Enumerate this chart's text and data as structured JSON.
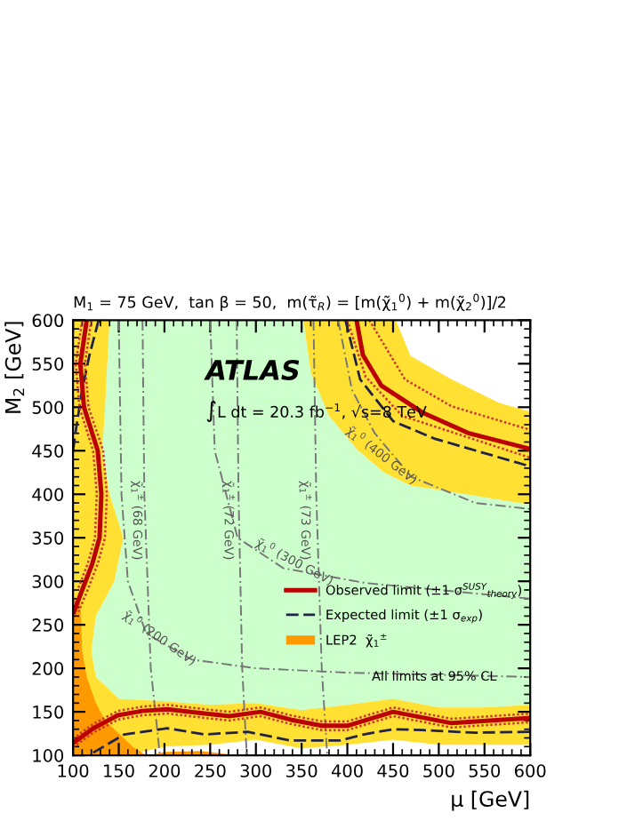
{
  "chart_data": {
    "type": "line",
    "title": "M$_{1}$ = 75 GeV,  tan β = 50,  m(τ̃$_{R}$) = [m(χ̃$_{1}$$^{0}$) + m(χ̃$_{2}$$^{0}$)]/2",
    "xlabel": "μ [GeV]",
    "ylabel": "M$_{2}$ [GeV]",
    "xlim": [
      100,
      600
    ],
    "ylim": [
      100,
      600
    ],
    "xticks": [
      100,
      150,
      200,
      250,
      300,
      350,
      400,
      450,
      500,
      550,
      600
    ],
    "yticks": [
      100,
      150,
      200,
      250,
      300,
      350,
      400,
      450,
      500,
      550,
      600
    ],
    "grid": false,
    "legend": "right",
    "series": [
      {
        "type": "area",
        "color": "#ccffcc",
        "x": [
          140,
          135,
          132,
          140,
          155,
          145,
          125,
          120,
          125,
          150,
          200,
          250,
          300,
          350,
          400,
          450,
          500,
          550,
          600,
          600,
          530,
          469,
          440,
          411,
          380,
          360,
          352
        ],
        "values": [
          600,
          500,
          450,
          400,
          350,
          300,
          260,
          220,
          190,
          165,
          162,
          158,
          160,
          152,
          158,
          165,
          155,
          155,
          158,
          388,
          400,
          410,
          425,
          451,
          490,
          540,
          600
        ]
      },
      {
        "type": "area",
        "color": "#ffe033",
        "x": [
          100,
          140,
          135,
          132,
          140,
          155,
          145,
          125,
          120,
          125,
          150,
          200,
          250,
          300,
          350,
          400,
          450,
          500,
          550,
          600,
          600,
          500,
          450,
          400,
          350,
          300,
          250,
          200,
          160,
          100
        ],
        "values": [
          600,
          600,
          500,
          450,
          400,
          350,
          300,
          260,
          220,
          190,
          165,
          162,
          158,
          160,
          152,
          158,
          165,
          155,
          155,
          158,
          112,
          112,
          118,
          112,
          108,
          118,
          112,
          110,
          100,
          100
        ]
      },
      {
        "type": "area",
        "color": "#ffe033",
        "x": [
          352,
          453,
          469,
          514,
          566,
          600,
          600,
          530,
          469,
          440,
          411,
          380,
          360
        ],
        "values": [
          600,
          600,
          559,
          532,
          505,
          495,
          388,
          400,
          410,
          425,
          451,
          490,
          540
        ]
      },
      {
        "type": "area",
        "name": "LEP2  χ̃$_{1}$$^{±}$",
        "color": "#ff9900",
        "x": [
          100,
          108,
          110,
          115,
          125,
          135,
          150,
          165,
          180,
          100
        ],
        "values": [
          280,
          275,
          220,
          190,
          160,
          140,
          125,
          110,
          100,
          100
        ]
      },
      {
        "type": "area",
        "color": "#ff9900",
        "x": [
          185,
          200,
          240,
          280
        ],
        "values": [
          100,
          104,
          105,
          100
        ]
      },
      {
        "color": "#777777",
        "line_style": "dashdot",
        "x": [
          176,
          178,
          185,
          195
        ],
        "values": [
          600,
          400,
          200,
          100
        ]
      },
      {
        "color": "#777777",
        "line_style": "dashdot",
        "x": [
          279,
          281,
          285,
          290
        ],
        "values": [
          600,
          400,
          200,
          100
        ]
      },
      {
        "color": "#777777",
        "line_style": "dashdot",
        "x": [
          363,
          366,
          372,
          378
        ],
        "values": [
          600,
          400,
          200,
          100
        ]
      },
      {
        "color": "#777777",
        "line_style": "dashdot",
        "x": [
          150,
          153,
          160,
          180,
          230,
          300,
          400,
          600
        ],
        "values": [
          600,
          400,
          300,
          240,
          210,
          200,
          195,
          190
        ]
      },
      {
        "color": "#777777",
        "line_style": "dashdot",
        "x": [
          250,
          255,
          280,
          330,
          420,
          600
        ],
        "values": [
          600,
          450,
          350,
          315,
          298,
          280
        ]
      },
      {
        "color": "#777777",
        "line_style": "dashdot",
        "x": [
          390,
          405,
          430,
          470,
          540,
          600
        ],
        "values": [
          600,
          520,
          470,
          420,
          390,
          383
        ]
      },
      {
        "name": "Expected limit (±1 σ$_{exp}$)",
        "color": "#222244",
        "line_style": "dashed",
        "x": [
          128,
          118,
          110,
          104,
          100
        ],
        "values": [
          600,
          560,
          520,
          480,
          450
        ]
      },
      {
        "color": "#222244",
        "line_style": "dashed",
        "x": [
          122,
          156,
          203,
          244,
          291,
          338,
          392,
          418,
          450,
          482,
          540,
          600
        ],
        "values": [
          103,
          124,
          131,
          124,
          127,
          117,
          117,
          124,
          130,
          129,
          126,
          127
        ]
      },
      {
        "color": "#222244",
        "line_style": "dashed",
        "x": [
          398,
          414,
          450,
          495,
          600
        ],
        "values": [
          600,
          532,
          484,
          464,
          432
        ]
      },
      {
        "color": "#cc3333",
        "line_style": "dotted",
        "x": [
          120,
          113,
          117,
          133,
          137,
          135,
          127,
          116,
          106
        ],
        "values": [
          600,
          550,
          500,
          450,
          400,
          350,
          320,
          290,
          265
        ]
      },
      {
        "color": "#cc3333",
        "line_style": "dotted",
        "x": [
          100,
          122,
          149,
          176,
          203,
          244,
          271,
          305,
          338,
          372,
          400,
          450,
          514,
          600
        ],
        "values": [
          119,
          136,
          151,
          156,
          158,
          153,
          150,
          155,
          146,
          139,
          139,
          155,
          142,
          148
        ]
      },
      {
        "color": "#cc3333",
        "line_style": "dotted",
        "x": [
          424,
          463,
          514,
          600
        ],
        "values": [
          600,
          532,
          501,
          474
        ]
      },
      {
        "color": "#cc3333",
        "line_style": "dotted",
        "x": [
          110,
          103,
          107,
          122,
          126,
          124,
          116,
          105
        ],
        "values": [
          600,
          550,
          500,
          450,
          400,
          350,
          320,
          290
        ]
      },
      {
        "color": "#cc3333",
        "line_style": "dotted",
        "x": [
          100,
          122,
          149,
          176,
          203,
          244,
          271,
          305,
          338,
          372,
          400,
          450,
          514,
          600
        ],
        "values": [
          109,
          126,
          141,
          146,
          148,
          143,
          140,
          145,
          136,
          129,
          129,
          145,
          132,
          138
        ]
      },
      {
        "color": "#cc3333",
        "line_style": "dotted",
        "x": [
          400,
          420,
          460,
          600
        ],
        "values": [
          600,
          535,
          490,
          442
        ]
      },
      {
        "name": "Observed limit (±1 σ$^{SUSY}$$_{theory}$)",
        "color": "#bb0000",
        "line_style": "solid",
        "x": [
          115,
          108,
          112,
          127,
          131,
          129,
          121,
          110,
          101
        ],
        "values": [
          600,
          550,
          500,
          450,
          400,
          350,
          320,
          290,
          265
        ]
      },
      {
        "color": "#bb0000",
        "line_style": "solid",
        "x": [
          100,
          122,
          149,
          176,
          203,
          244,
          271,
          305,
          338,
          372,
          400,
          450,
          514,
          600
        ],
        "values": [
          114,
          131,
          146,
          151,
          153,
          148,
          145,
          150,
          141,
          134,
          134,
          150,
          137,
          143
        ]
      },
      {
        "color": "#bb0000",
        "line_style": "solid",
        "x": [
          410,
          417,
          437,
          482,
          533,
          600
        ],
        "values": [
          600,
          560,
          525,
          494,
          470,
          452
        ]
      }
    ],
    "annotations": [
      "ATLAS",
      "∫L dt = 20.3 fb$^{−1}$, √s=8 TeV",
      "All limits at 95% CL",
      "χ̃$_{1}$$^{±}$ (68 GeV)",
      "χ̃$_{1}$$^{±}$ (72 GeV)",
      "χ̃$_{1}$$^{±}$ (73 GeV)",
      "χ̃$_{1}$$^{0}$ (200 GeV)",
      "χ̃$_{1}$$^{0}$ (300 GeV)",
      "χ̃$_{1}$$^{0}$ (400 GeV)"
    ]
  }
}
